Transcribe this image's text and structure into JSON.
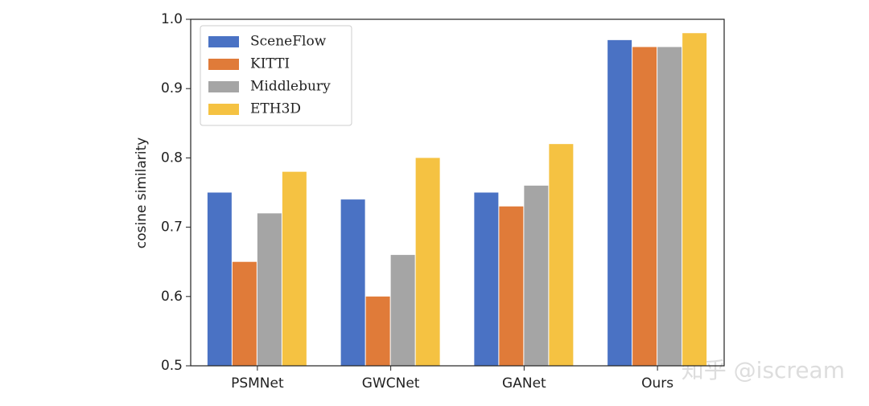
{
  "chart_data": {
    "type": "bar",
    "categories": [
      "PSMNet",
      "GWCNet",
      "GANet",
      "Ours"
    ],
    "series": [
      {
        "name": "SceneFlow",
        "color": "#4a72c4",
        "values": [
          0.75,
          0.74,
          0.75,
          0.97
        ]
      },
      {
        "name": "KITTI",
        "color": "#e07b39",
        "values": [
          0.65,
          0.6,
          0.73,
          0.96
        ]
      },
      {
        "name": "Middlebury",
        "color": "#a5a5a5",
        "values": [
          0.72,
          0.66,
          0.76,
          0.96
        ]
      },
      {
        "name": "ETH3D",
        "color": "#f5c242",
        "values": [
          0.78,
          0.8,
          0.82,
          0.98
        ]
      }
    ],
    "y_label": "cosine similarity",
    "ylim": [
      0.5,
      1.0
    ],
    "yticks": [
      0.5,
      0.6,
      0.7,
      0.8,
      0.9,
      {
        "value": 1.0,
        "label": "1.0"
      }
    ],
    "legend": "upper left",
    "watermark": "知乎 @iscream"
  }
}
